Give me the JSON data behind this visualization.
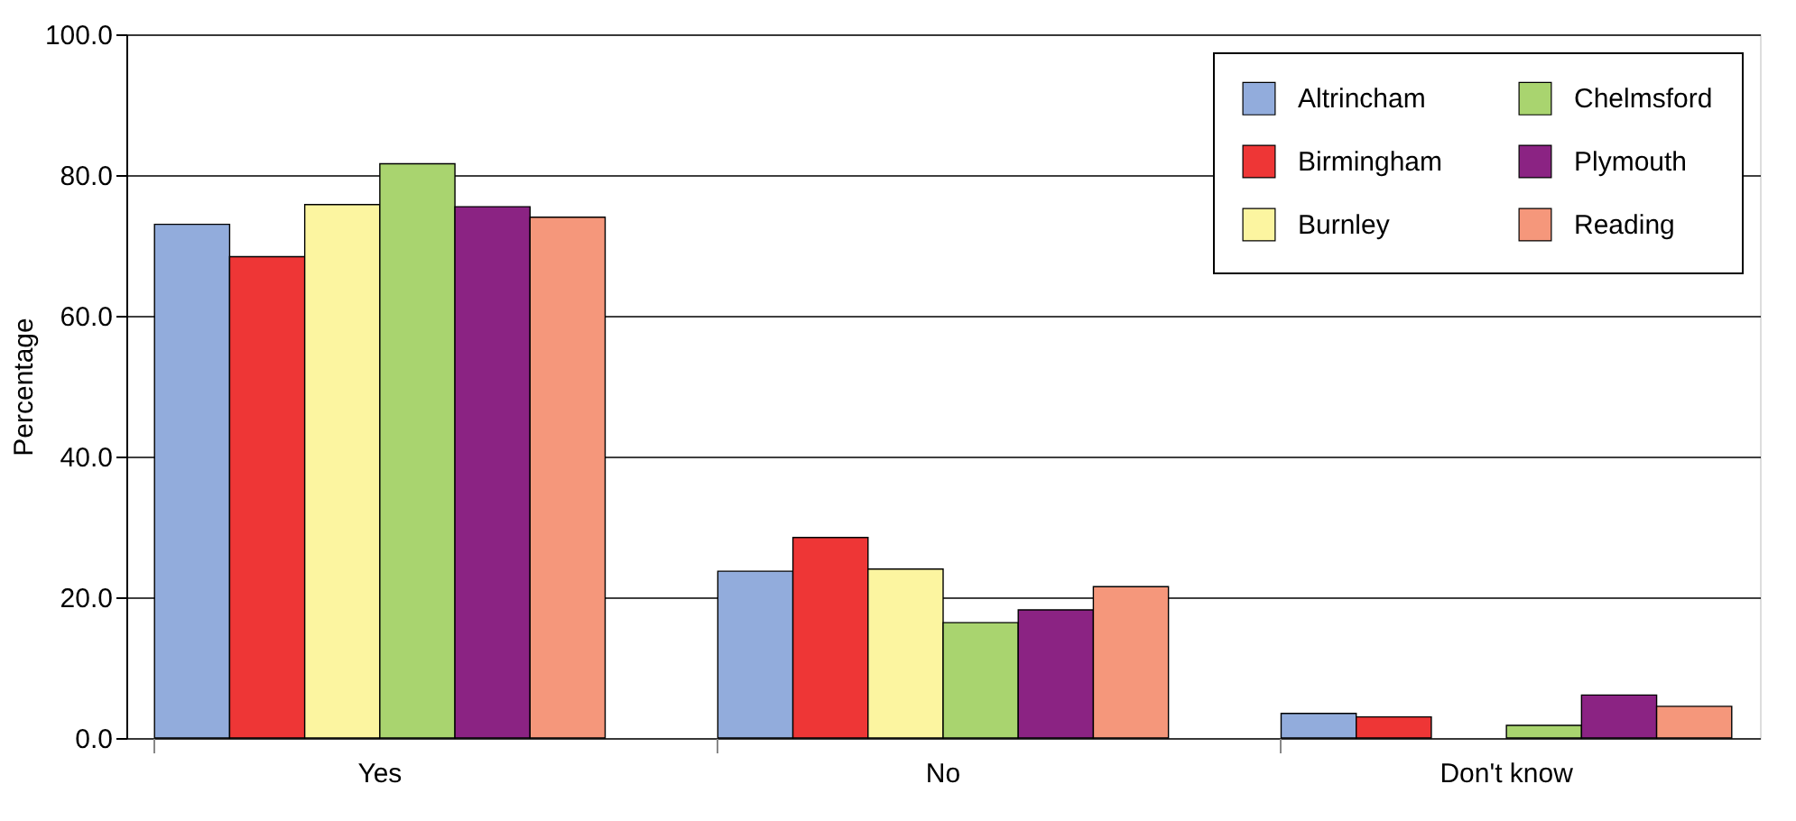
{
  "chart_data": {
    "type": "bar",
    "ylabel": "Percentage",
    "categories": [
      "Yes",
      "No",
      "Don't know"
    ],
    "series": [
      {
        "name": "Altrincham",
        "color": "#92acdc",
        "values": [
          73.0,
          23.7,
          3.5
        ]
      },
      {
        "name": "Birmingham",
        "color": "#ee3636",
        "values": [
          68.4,
          28.5,
          3.0
        ]
      },
      {
        "name": "Burnley",
        "color": "#fcf5a0",
        "values": [
          75.8,
          24.0,
          null
        ]
      },
      {
        "name": "Chelmsford",
        "color": "#a9d46f",
        "values": [
          81.6,
          16.4,
          1.8
        ]
      },
      {
        "name": "Plymouth",
        "color": "#8b2383",
        "values": [
          75.5,
          18.2,
          6.1
        ]
      },
      {
        "name": "Reading",
        "color": "#f5977b",
        "values": [
          74.0,
          21.5,
          4.5
        ]
      }
    ],
    "ylim": [
      0,
      100
    ],
    "yticks": [
      {
        "value": 0,
        "label": "0.0"
      },
      {
        "value": 20,
        "label": "20.0"
      },
      {
        "value": 40,
        "label": "40.0"
      },
      {
        "value": 60,
        "label": "60.0"
      },
      {
        "value": 80,
        "label": "80.0"
      },
      {
        "value": 100,
        "label": "100.0"
      }
    ],
    "grid": "y",
    "legend": "top right"
  }
}
